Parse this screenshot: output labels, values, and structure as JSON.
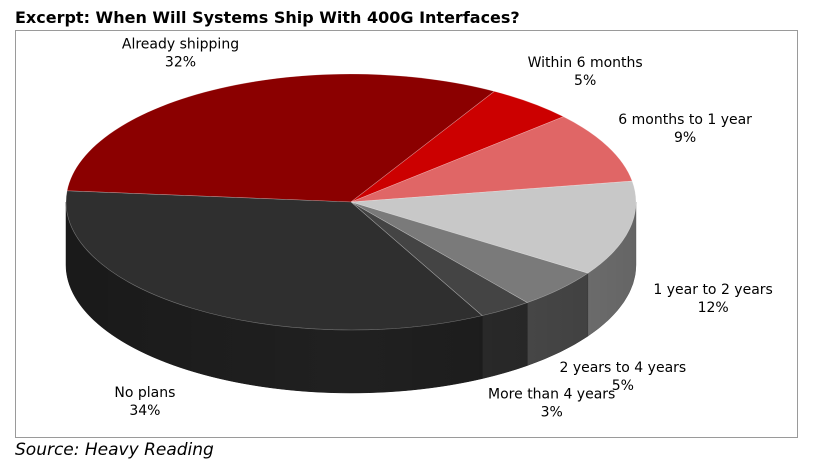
{
  "title": "Excerpt: When Will Systems Ship With 400G Interfaces?",
  "source": "Source: Heavy Reading",
  "chart_data": {
    "type": "pie",
    "style": "3d",
    "title": "Excerpt: When Will Systems Ship With 400G Interfaces?",
    "slices": [
      {
        "label": "Already shipping",
        "value": 32,
        "value_label": "32%",
        "color": "#8B0000"
      },
      {
        "label": "Within 6 months",
        "value": 5,
        "value_label": "5%",
        "color": "#CC0000"
      },
      {
        "label": "6 months to 1 year",
        "value": 9,
        "value_label": "9%",
        "color": "#E06666"
      },
      {
        "label": "1 year to 2 years",
        "value": 12,
        "value_label": "12%",
        "color": "#C8C8C8"
      },
      {
        "label": "2 years to 4 years",
        "value": 5,
        "value_label": "5%",
        "color": "#7A7A7A"
      },
      {
        "label": "More than 4 years",
        "value": 3,
        "value_label": "3%",
        "color": "#444444"
      },
      {
        "label": "No plans",
        "value": 34,
        "value_label": "34%",
        "color": "#2F2F2F"
      }
    ]
  }
}
